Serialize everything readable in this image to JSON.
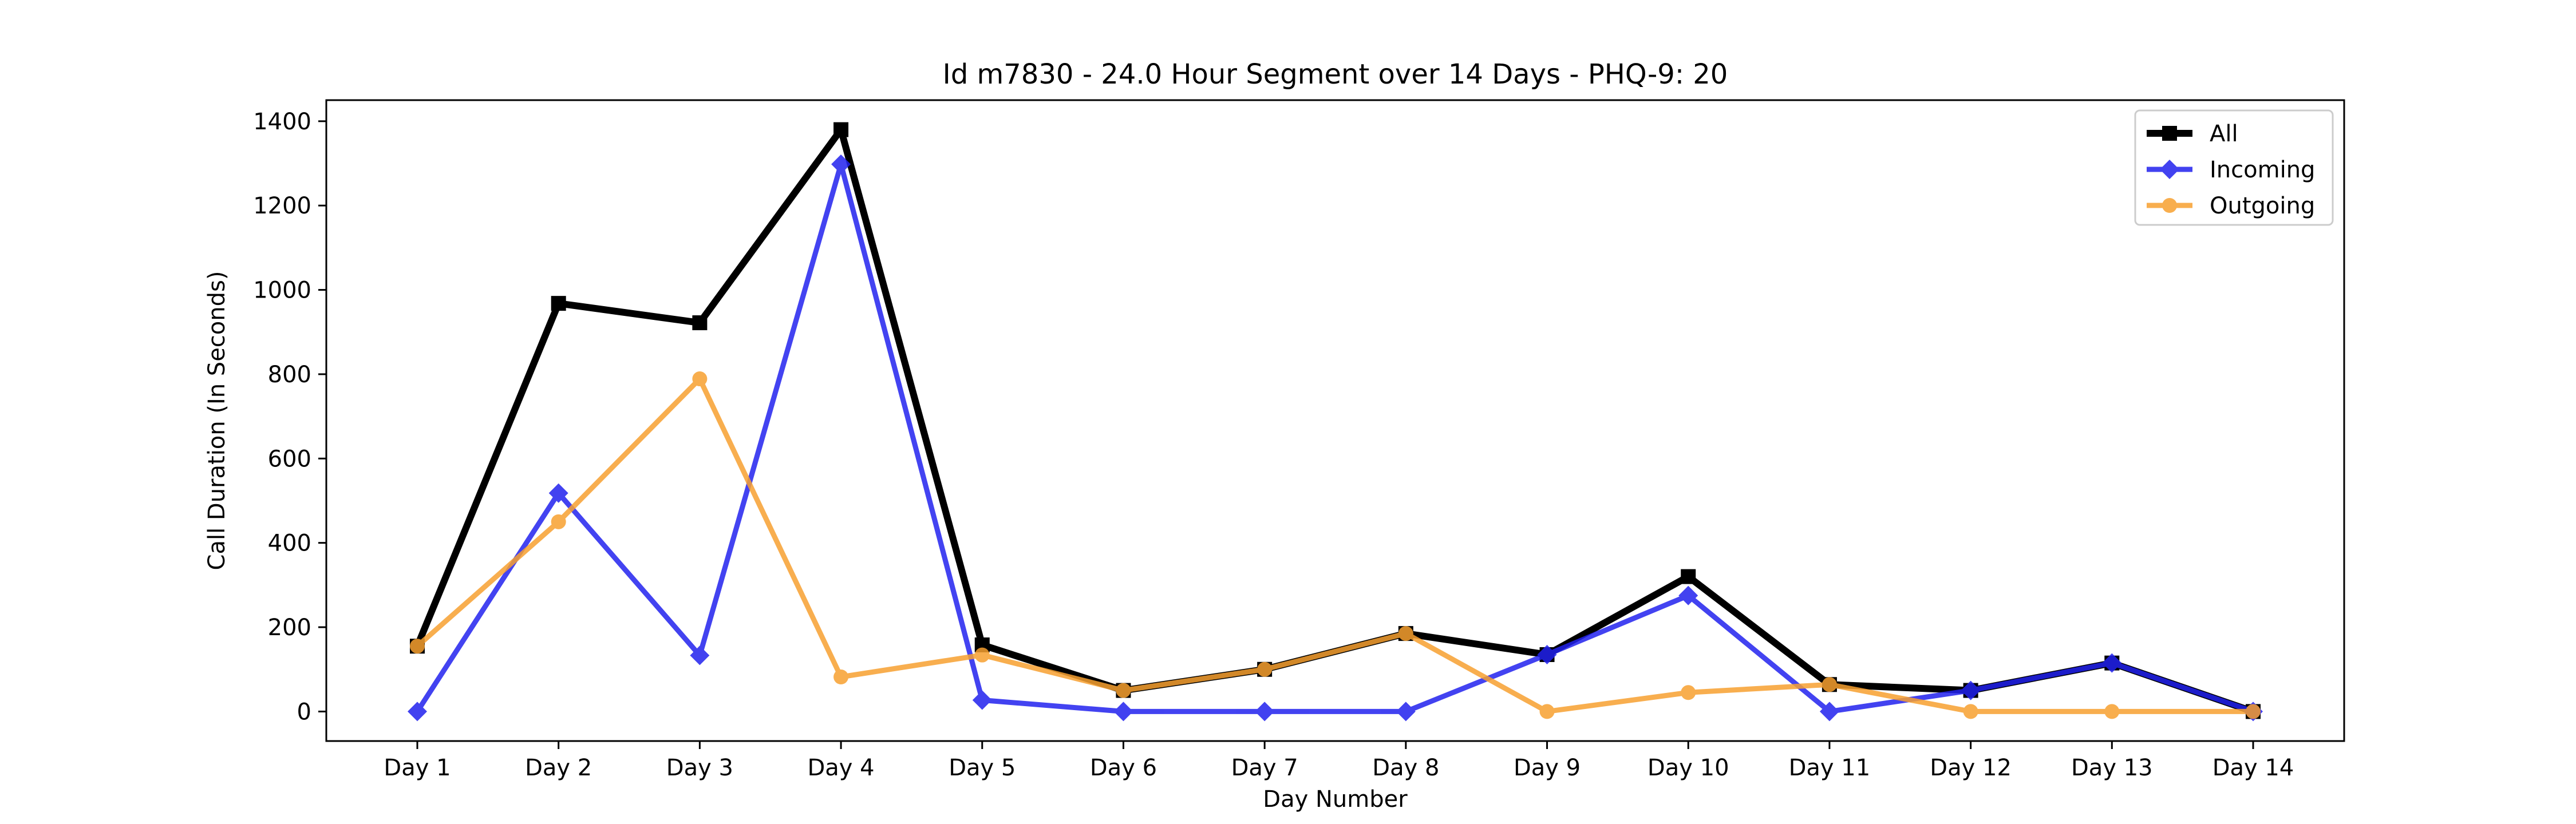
{
  "chart_data": {
    "type": "line",
    "title": "Id m7830 - 24.0 Hour Segment over 14 Days - PHQ-9: 20",
    "xlabel": "Day Number",
    "ylabel": "Call Duration (In Seconds)",
    "categories": [
      "Day 1",
      "Day 2",
      "Day 3",
      "Day 4",
      "Day 5",
      "Day 6",
      "Day 7",
      "Day 8",
      "Day 9",
      "Day 10",
      "Day 11",
      "Day 12",
      "Day 13",
      "Day 14"
    ],
    "ylim": [
      -70,
      1450
    ],
    "yticks": [
      0,
      200,
      400,
      600,
      800,
      1000,
      1200,
      1400
    ],
    "grid": false,
    "legend_position": "top-right",
    "series": [
      {
        "name": "All",
        "color": "#000000",
        "marker": "square",
        "values": [
          155,
          968,
          922,
          1380,
          158,
          50,
          100,
          185,
          135,
          320,
          64,
          50,
          115,
          0
        ]
      },
      {
        "name": "Incoming",
        "color": "#2222ee",
        "marker": "diamond",
        "values": [
          0,
          518,
          133,
          1298,
          27,
          0,
          0,
          0,
          135,
          275,
          0,
          50,
          115,
          0
        ]
      },
      {
        "name": "Outgoing",
        "color": "#f7a030",
        "marker": "circle",
        "values": [
          155,
          450,
          789,
          82,
          134,
          50,
          100,
          185,
          0,
          45,
          64,
          0,
          0,
          0
        ]
      }
    ]
  }
}
